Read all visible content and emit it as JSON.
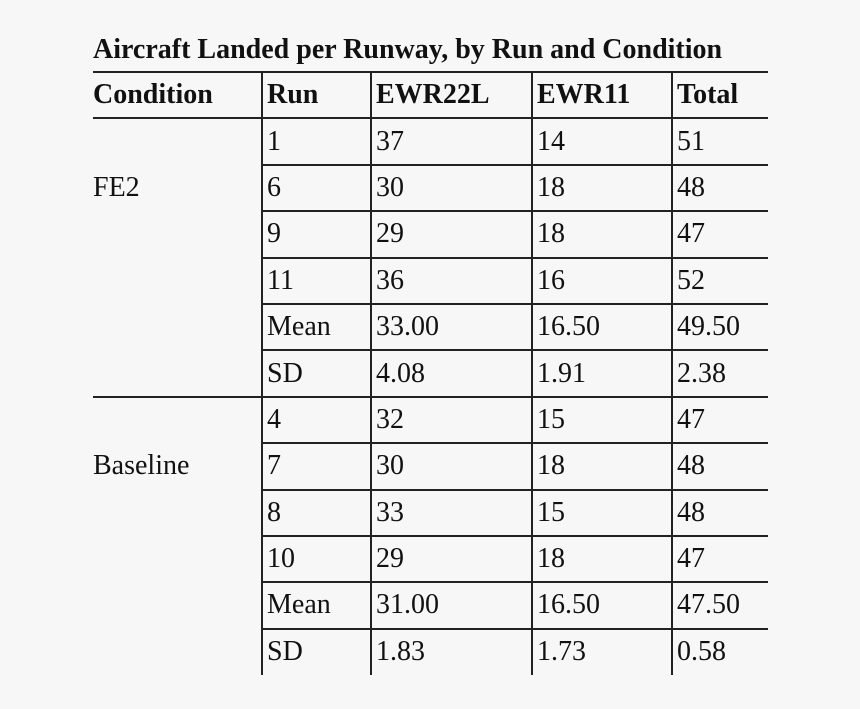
{
  "title": "Aircraft Landed per Runway, by Run and Condition",
  "columns": [
    "Condition",
    "Run",
    "EWR22L",
    "EWR11",
    "Total"
  ],
  "groups": [
    {
      "condition": "FE2",
      "rows": [
        [
          "1",
          "37",
          "14",
          "51"
        ],
        [
          "6",
          "30",
          "18",
          "48"
        ],
        [
          "9",
          "29",
          "18",
          "47"
        ],
        [
          "11",
          "36",
          "16",
          "52"
        ],
        [
          "Mean",
          "33.00",
          "16.50",
          "49.50"
        ],
        [
          "SD",
          "4.08",
          "1.91",
          "2.38"
        ]
      ]
    },
    {
      "condition": "Baseline",
      "rows": [
        [
          "4",
          "32",
          "15",
          "47"
        ],
        [
          "7",
          "30",
          "18",
          "48"
        ],
        [
          "8",
          "33",
          "15",
          "48"
        ],
        [
          "10",
          "29",
          "18",
          "47"
        ],
        [
          "Mean",
          "31.00",
          "16.50",
          "47.50"
        ],
        [
          "SD",
          "1.83",
          "1.73",
          "0.58"
        ]
      ]
    }
  ]
}
